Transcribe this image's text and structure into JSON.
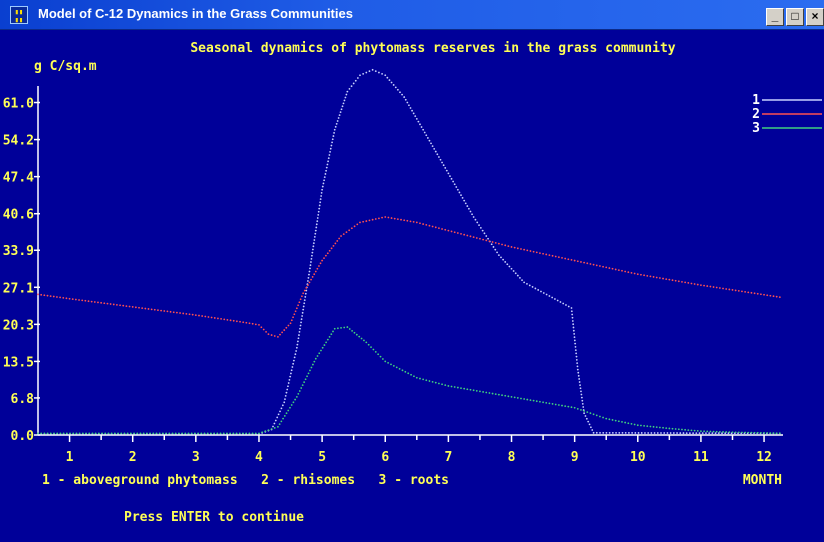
{
  "window": {
    "title": "Model of C-12 Dynamics in the Grass Communities",
    "icon_name": "app-icon",
    "icon_text": "DB\n6H",
    "buttons": [
      "minimize",
      "maximize",
      "close"
    ]
  },
  "colors": {
    "background": "#000099",
    "text": "#ffff55",
    "axes": "#ffffff",
    "series1": "#c8d0ff",
    "series2": "#ff5050",
    "series3": "#40d080"
  },
  "footer": {
    "legend_text": "1 - aboveground phytomass   2 - rhisomes   3 - roots",
    "press_enter": "Press ENTER to continue"
  },
  "chart_data": {
    "type": "scatter",
    "title": "Seasonal dynamics of phytomass reserves in the grass community",
    "ylabel": "g C/sq.m",
    "xlabel": "MONTH",
    "yticks": [
      "0.0",
      "6.8",
      "13.5",
      "20.3",
      "27.1",
      "33.9",
      "40.6",
      "47.4",
      "54.2",
      "61.0"
    ],
    "xticks": [
      "1",
      "2",
      "3",
      "4",
      "5",
      "6",
      "7",
      "8",
      "9",
      "10",
      "11",
      "12"
    ],
    "ylim": [
      0,
      67.7
    ],
    "xlim": [
      0.5,
      12.3
    ],
    "legend": [
      "1",
      "2",
      "3"
    ],
    "legend_placement": "top-right",
    "series": [
      {
        "name": "1",
        "color": "#c8d0ff",
        "points": [
          [
            0.5,
            0.2
          ],
          [
            4.0,
            0.2
          ],
          [
            4.2,
            1
          ],
          [
            4.4,
            6
          ],
          [
            4.6,
            16
          ],
          [
            4.8,
            30
          ],
          [
            5.0,
            45
          ],
          [
            5.2,
            56
          ],
          [
            5.4,
            63
          ],
          [
            5.6,
            66
          ],
          [
            5.8,
            67
          ],
          [
            6.0,
            66
          ],
          [
            6.3,
            62
          ],
          [
            6.6,
            56
          ],
          [
            7.0,
            48
          ],
          [
            7.4,
            40
          ],
          [
            7.8,
            33
          ],
          [
            8.2,
            28
          ],
          [
            8.6,
            25.5
          ],
          [
            8.95,
            23.3
          ],
          [
            9.05,
            12
          ],
          [
            9.15,
            4
          ],
          [
            9.3,
            0.4
          ],
          [
            12.3,
            0.3
          ]
        ]
      },
      {
        "name": "2",
        "color": "#ff5050",
        "points": [
          [
            0.5,
            25.8
          ],
          [
            1,
            25
          ],
          [
            2,
            23.5
          ],
          [
            3,
            22
          ],
          [
            3.8,
            20.6
          ],
          [
            4.0,
            20.2
          ],
          [
            4.15,
            18.5
          ],
          [
            4.3,
            18
          ],
          [
            4.5,
            20.5
          ],
          [
            4.7,
            26
          ],
          [
            5.0,
            32
          ],
          [
            5.3,
            36.5
          ],
          [
            5.6,
            39
          ],
          [
            6.0,
            40
          ],
          [
            6.5,
            39
          ],
          [
            7.0,
            37.5
          ],
          [
            8,
            34.5
          ],
          [
            9,
            32
          ],
          [
            10,
            29.5
          ],
          [
            11,
            27.5
          ],
          [
            12.3,
            25.2
          ]
        ]
      },
      {
        "name": "3",
        "color": "#40d080",
        "points": [
          [
            0.5,
            0.3
          ],
          [
            4.0,
            0.3
          ],
          [
            4.3,
            1.5
          ],
          [
            4.6,
            7
          ],
          [
            4.9,
            14
          ],
          [
            5.2,
            19.5
          ],
          [
            5.4,
            19.8
          ],
          [
            5.7,
            17
          ],
          [
            6.0,
            13.5
          ],
          [
            6.5,
            10.5
          ],
          [
            7.0,
            9
          ],
          [
            7.5,
            8
          ],
          [
            8.0,
            7
          ],
          [
            8.5,
            6
          ],
          [
            9.0,
            5
          ],
          [
            9.5,
            3
          ],
          [
            10,
            1.8
          ],
          [
            10.5,
            1.2
          ],
          [
            11,
            0.7
          ],
          [
            11.5,
            0.5
          ],
          [
            12.3,
            0.3
          ]
        ]
      }
    ]
  }
}
